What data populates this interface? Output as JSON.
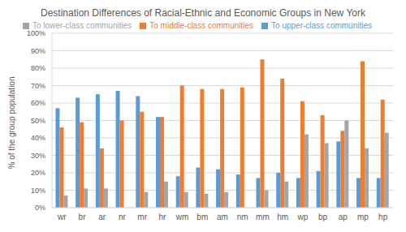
{
  "chart_data": {
    "type": "bar",
    "title": "Destination Differences of Racial-Ethnic and Economic Groups in New York",
    "y_label": "% of the group population",
    "categories": [
      "wr",
      "br",
      "ar",
      "nr",
      "mr",
      "hr",
      "wm",
      "bm",
      "am",
      "nm",
      "mm",
      "hm",
      "wp",
      "bp",
      "ap",
      "mp",
      "hp"
    ],
    "series": [
      {
        "name": "To upper-class communities",
        "color": "#5b9bd5",
        "values": [
          57,
          63,
          65,
          67,
          64,
          52,
          18,
          23,
          22,
          19,
          17,
          20,
          17,
          21,
          38,
          17,
          17
        ]
      },
      {
        "name": "To middle-class communities",
        "color": "#ed7d31",
        "values": [
          46,
          49,
          34,
          50,
          55,
          52,
          70,
          68,
          68,
          69,
          85,
          74,
          61,
          53,
          44,
          84,
          62
        ]
      },
      {
        "name": "To lower-class communities",
        "color": "#a5a5a5",
        "values": [
          7,
          11,
          11,
          0,
          9,
          15,
          9,
          8,
          9,
          0,
          10,
          15,
          42,
          37,
          50,
          34,
          43
        ]
      }
    ],
    "ylim": [
      0,
      100
    ],
    "yticks": [
      {
        "value": 0,
        "label": "0%"
      },
      {
        "value": 10,
        "label": "10%"
      },
      {
        "value": 20,
        "label": "20%"
      },
      {
        "value": 30,
        "label": "30%"
      },
      {
        "value": 40,
        "label": "40%"
      },
      {
        "value": 50,
        "label": "50%"
      },
      {
        "value": 60,
        "label": "60%"
      },
      {
        "value": 70,
        "label": "70%"
      },
      {
        "value": 80,
        "label": "80%"
      },
      {
        "value": 90,
        "label": "90%"
      },
      {
        "value": 100,
        "label": "100%"
      }
    ],
    "grid": true,
    "legend": "top"
  }
}
